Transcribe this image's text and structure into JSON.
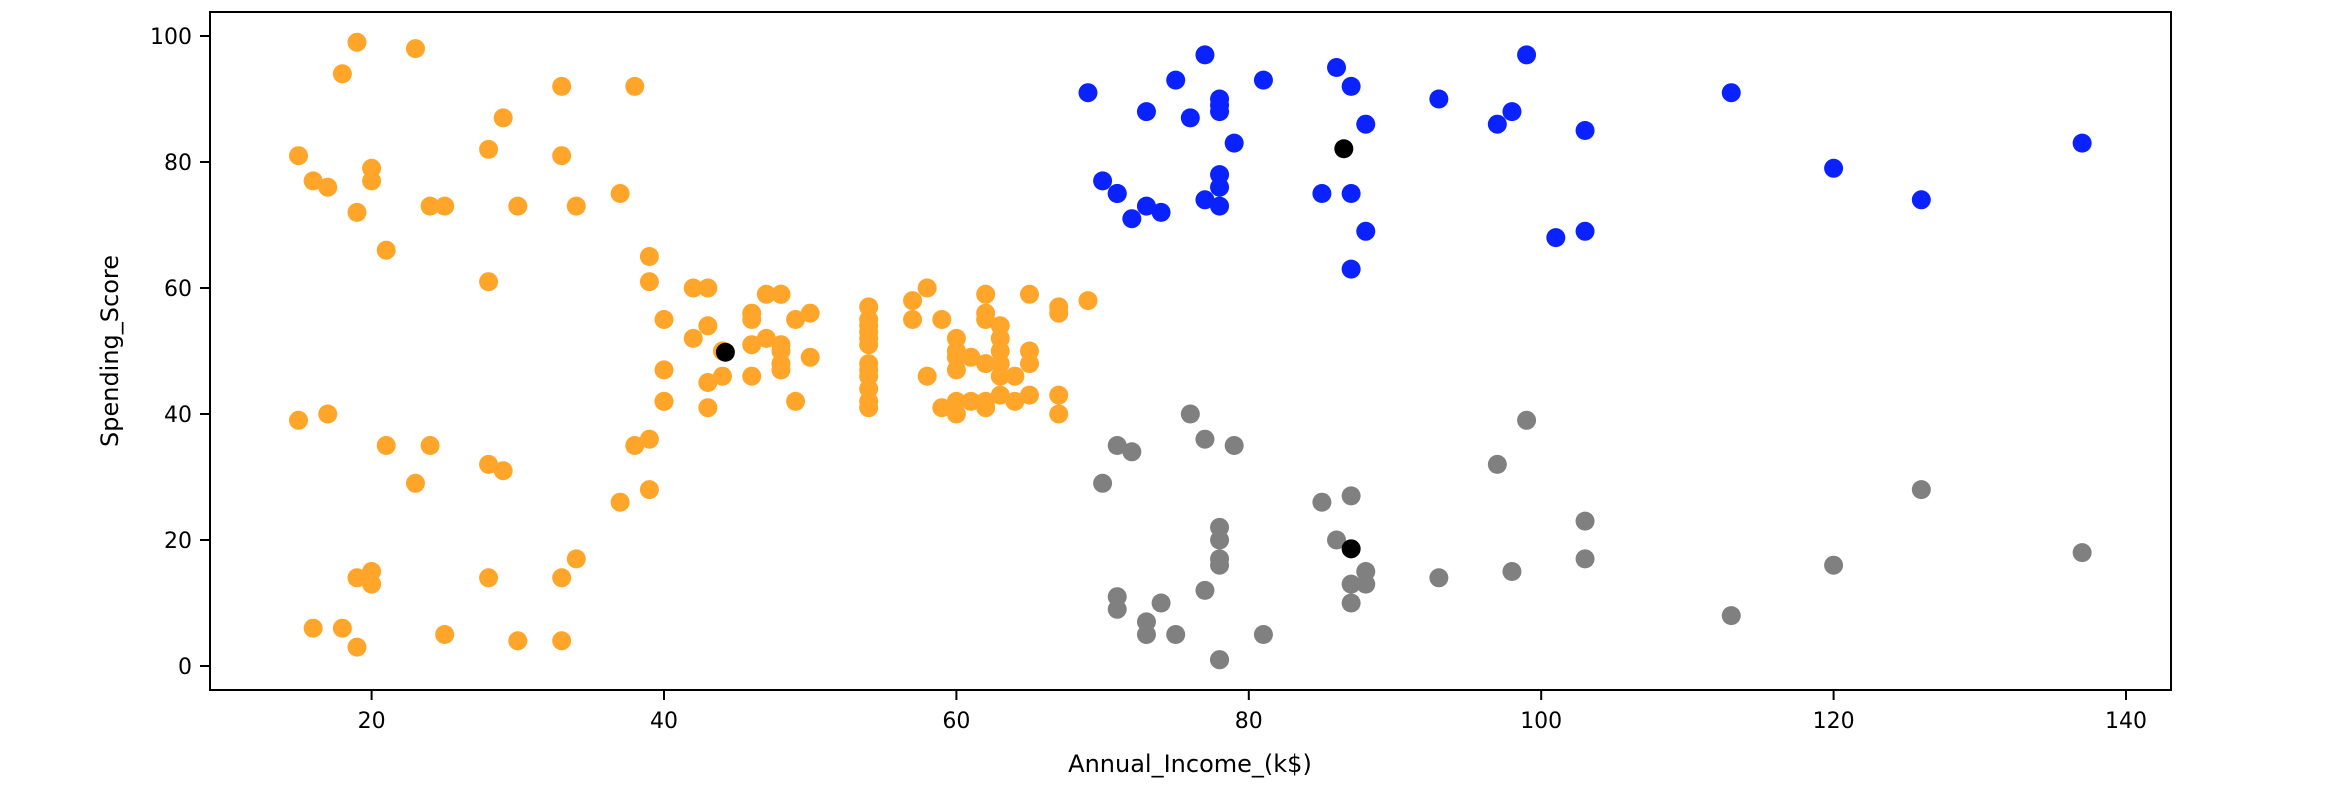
{
  "chart_data": {
    "type": "scatter",
    "title": "",
    "xlabel": "Annual_Income_(k$)",
    "ylabel": "Spending_Score",
    "xlim": [
      9,
      143
    ],
    "ylim": [
      -4,
      104
    ],
    "xticks": [
      20,
      40,
      60,
      80,
      100,
      120,
      140
    ],
    "yticks": [
      0,
      20,
      40,
      60,
      80,
      100
    ],
    "grid": false,
    "legend": "none",
    "series": [
      {
        "color": "#ffa52a",
        "points": [
          [
            15,
            39
          ],
          [
            15,
            81
          ],
          [
            16,
            6
          ],
          [
            16,
            77
          ],
          [
            17,
            40
          ],
          [
            17,
            76
          ],
          [
            18,
            6
          ],
          [
            18,
            94
          ],
          [
            19,
            3
          ],
          [
            19,
            72
          ],
          [
            19,
            14
          ],
          [
            19,
            99
          ],
          [
            20,
            15
          ],
          [
            20,
            77
          ],
          [
            20,
            13
          ],
          [
            20,
            79
          ],
          [
            21,
            35
          ],
          [
            21,
            66
          ],
          [
            23,
            29
          ],
          [
            23,
            98
          ],
          [
            24,
            35
          ],
          [
            24,
            73
          ],
          [
            25,
            5
          ],
          [
            25,
            73
          ],
          [
            28,
            14
          ],
          [
            28,
            82
          ],
          [
            28,
            32
          ],
          [
            28,
            61
          ],
          [
            29,
            31
          ],
          [
            29,
            87
          ],
          [
            30,
            4
          ],
          [
            30,
            73
          ],
          [
            33,
            4
          ],
          [
            33,
            92
          ],
          [
            33,
            14
          ],
          [
            33,
            81
          ],
          [
            34,
            17
          ],
          [
            34,
            73
          ],
          [
            37,
            26
          ],
          [
            37,
            75
          ],
          [
            38,
            35
          ],
          [
            38,
            92
          ],
          [
            39,
            36
          ],
          [
            39,
            61
          ],
          [
            39,
            28
          ],
          [
            39,
            65
          ],
          [
            40,
            55
          ],
          [
            40,
            47
          ],
          [
            40,
            42
          ],
          [
            40,
            42
          ],
          [
            42,
            52
          ],
          [
            42,
            60
          ],
          [
            43,
            54
          ],
          [
            43,
            60
          ],
          [
            43,
            45
          ],
          [
            43,
            41
          ],
          [
            44,
            50
          ],
          [
            44,
            46
          ],
          [
            46,
            51
          ],
          [
            46,
            46
          ],
          [
            46,
            56
          ],
          [
            46,
            55
          ],
          [
            47,
            52
          ],
          [
            47,
            59
          ],
          [
            48,
            51
          ],
          [
            48,
            59
          ],
          [
            48,
            50
          ],
          [
            48,
            48
          ],
          [
            48,
            59
          ],
          [
            48,
            47
          ],
          [
            49,
            55
          ],
          [
            49,
            42
          ],
          [
            50,
            49
          ],
          [
            50,
            56
          ],
          [
            54,
            47
          ],
          [
            54,
            54
          ],
          [
            54,
            53
          ],
          [
            54,
            48
          ],
          [
            54,
            52
          ],
          [
            54,
            42
          ],
          [
            54,
            51
          ],
          [
            54,
            55
          ],
          [
            54,
            41
          ],
          [
            54,
            44
          ],
          [
            54,
            57
          ],
          [
            54,
            46
          ],
          [
            57,
            58
          ],
          [
            57,
            55
          ],
          [
            58,
            60
          ],
          [
            58,
            46
          ],
          [
            59,
            55
          ],
          [
            59,
            41
          ],
          [
            60,
            49
          ],
          [
            60,
            40
          ],
          [
            60,
            42
          ],
          [
            60,
            52
          ],
          [
            60,
            47
          ],
          [
            60,
            50
          ],
          [
            61,
            42
          ],
          [
            61,
            49
          ],
          [
            62,
            41
          ],
          [
            62,
            48
          ],
          [
            62,
            59
          ],
          [
            62,
            55
          ],
          [
            62,
            56
          ],
          [
            62,
            42
          ],
          [
            63,
            50
          ],
          [
            63,
            46
          ],
          [
            63,
            43
          ],
          [
            63,
            48
          ],
          [
            63,
            52
          ],
          [
            63,
            54
          ],
          [
            64,
            42
          ],
          [
            64,
            46
          ],
          [
            65,
            48
          ],
          [
            65,
            50
          ],
          [
            65,
            43
          ],
          [
            65,
            59
          ],
          [
            67,
            43
          ],
          [
            67,
            57
          ],
          [
            67,
            56
          ],
          [
            67,
            40
          ],
          [
            69,
            58
          ]
        ]
      },
      {
        "color": "#0a22ff",
        "points": [
          [
            69,
            91
          ],
          [
            70,
            77
          ],
          [
            71,
            75
          ],
          [
            71,
            75
          ],
          [
            72,
            71
          ],
          [
            73,
            88
          ],
          [
            73,
            73
          ],
          [
            74,
            72
          ],
          [
            75,
            93
          ],
          [
            76,
            87
          ],
          [
            77,
            97
          ],
          [
            77,
            74
          ],
          [
            78,
            90
          ],
          [
            78,
            88
          ],
          [
            78,
            76
          ],
          [
            78,
            89
          ],
          [
            78,
            78
          ],
          [
            78,
            73
          ],
          [
            79,
            83
          ],
          [
            81,
            93
          ],
          [
            85,
            75
          ],
          [
            86,
            95
          ],
          [
            87,
            63
          ],
          [
            87,
            75
          ],
          [
            87,
            92
          ],
          [
            88,
            86
          ],
          [
            88,
            69
          ],
          [
            93,
            90
          ],
          [
            97,
            86
          ],
          [
            98,
            88
          ],
          [
            99,
            97
          ],
          [
            101,
            68
          ],
          [
            103,
            85
          ],
          [
            103,
            69
          ],
          [
            113,
            91
          ],
          [
            120,
            79
          ],
          [
            126,
            74
          ],
          [
            137,
            83
          ]
        ]
      },
      {
        "color": "#808080",
        "points": [
          [
            70,
            29
          ],
          [
            71,
            35
          ],
          [
            71,
            11
          ],
          [
            71,
            9
          ],
          [
            72,
            34
          ],
          [
            73,
            5
          ],
          [
            73,
            7
          ],
          [
            74,
            10
          ],
          [
            75,
            5
          ],
          [
            76,
            40
          ],
          [
            77,
            12
          ],
          [
            77,
            36
          ],
          [
            78,
            22
          ],
          [
            78,
            17
          ],
          [
            78,
            20
          ],
          [
            78,
            16
          ],
          [
            78,
            1
          ],
          [
            78,
            1
          ],
          [
            79,
            35
          ],
          [
            81,
            5
          ],
          [
            85,
            26
          ],
          [
            86,
            20
          ],
          [
            87,
            27
          ],
          [
            87,
            13
          ],
          [
            87,
            10
          ],
          [
            88,
            13
          ],
          [
            88,
            15
          ],
          [
            93,
            14
          ],
          [
            97,
            32
          ],
          [
            98,
            15
          ],
          [
            99,
            39
          ],
          [
            103,
            17
          ],
          [
            103,
            23
          ],
          [
            113,
            8
          ],
          [
            120,
            16
          ],
          [
            126,
            28
          ],
          [
            137,
            18
          ]
        ]
      }
    ],
    "centroids": {
      "color": "#000000",
      "points": [
        [
          44.2,
          49.8
        ],
        [
          86.5,
          82.1
        ],
        [
          87.0,
          18.6
        ]
      ]
    }
  }
}
